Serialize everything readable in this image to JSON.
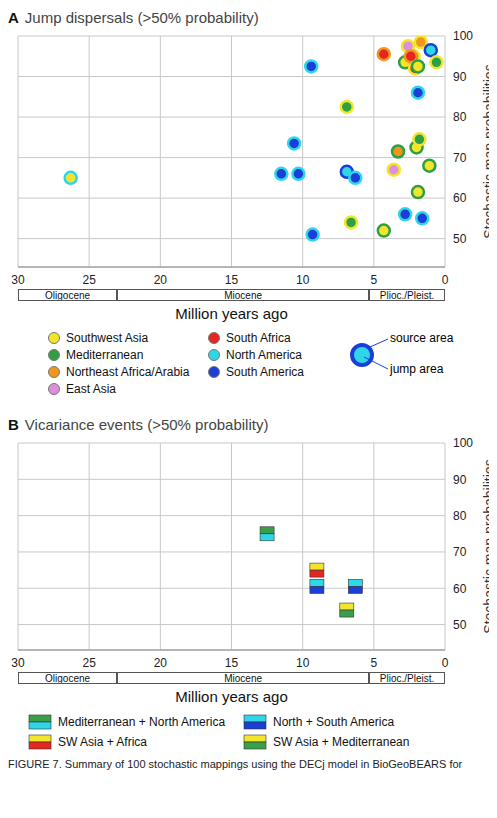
{
  "chart_data": [
    {
      "type": "scatter",
      "title": "A Jump dispersals (>50% probability)",
      "x_label": "Million years ago",
      "y_label": "Stochastic map probabilities",
      "xlim": [
        30,
        0
      ],
      "ylim": [
        43,
        100
      ],
      "xticks": [
        30,
        25,
        20,
        15,
        10,
        5,
        0
      ],
      "yticks": [
        50,
        60,
        70,
        80,
        90,
        100
      ],
      "grid": true,
      "epochs": [
        {
          "name": "Oligocene",
          "start": 30,
          "end": 23.03
        },
        {
          "name": "Miocene",
          "start": 23.03,
          "end": 5.33
        },
        {
          "name": "Plioc./Pleist.",
          "start": 5.33,
          "end": 0
        }
      ],
      "regions": [
        {
          "name": "Southwest Asia",
          "color": "#f2e52b"
        },
        {
          "name": "Mediterranean",
          "color": "#2ea043"
        },
        {
          "name": "Northeast Africa/Arabia",
          "color": "#f0961e"
        },
        {
          "name": "East Asia",
          "color": "#dc90dc"
        },
        {
          "name": "South Africa",
          "color": "#e5251f"
        },
        {
          "name": "North America",
          "color": "#2fd6e8"
        },
        {
          "name": "South America",
          "color": "#1a3fd6"
        }
      ],
      "legend_example": {
        "source": "South America",
        "jump": "North America",
        "source_label": "source area",
        "jump_label": "jump area"
      },
      "points": [
        {
          "x": 26.3,
          "y": 65,
          "source": "North America",
          "jump": "Southwest Asia"
        },
        {
          "x": 9.4,
          "y": 92.5,
          "source": "North America",
          "jump": "South America"
        },
        {
          "x": 6.9,
          "y": 82.5,
          "source": "Southwest Asia",
          "jump": "Mediterranean"
        },
        {
          "x": 10.6,
          "y": 73.5,
          "source": "North America",
          "jump": "South America"
        },
        {
          "x": 11.5,
          "y": 66,
          "source": "North America",
          "jump": "South America"
        },
        {
          "x": 10.3,
          "y": 66,
          "source": "North America",
          "jump": "South America"
        },
        {
          "x": 6.9,
          "y": 66.5,
          "source": "South America",
          "jump": "North America"
        },
        {
          "x": 6.3,
          "y": 65,
          "source": "North America",
          "jump": "South America"
        },
        {
          "x": 9.3,
          "y": 51,
          "source": "North America",
          "jump": "South America"
        },
        {
          "x": 6.6,
          "y": 54,
          "source": "Southwest Asia",
          "jump": "Mediterranean"
        },
        {
          "x": 4.3,
          "y": 95.5,
          "source": "Northeast Africa/Arabia",
          "jump": "South Africa"
        },
        {
          "x": 4.3,
          "y": 52,
          "source": "Mediterranean",
          "jump": "Southwest Asia"
        },
        {
          "x": 3.3,
          "y": 71.5,
          "source": "Mediterranean",
          "jump": "Northeast Africa/Arabia"
        },
        {
          "x": 3.6,
          "y": 67,
          "source": "Southwest Asia",
          "jump": "East Asia"
        },
        {
          "x": 2.6,
          "y": 97.5,
          "source": "Southwest Asia",
          "jump": "East Asia"
        },
        {
          "x": 2.8,
          "y": 93.5,
          "source": "Mediterranean",
          "jump": "Southwest Asia"
        },
        {
          "x": 2.2,
          "y": 95,
          "source": "Southwest Asia",
          "jump": "Mediterranean"
        },
        {
          "x": 2.4,
          "y": 95,
          "source": "Northeast Africa/Arabia",
          "jump": "South Africa"
        },
        {
          "x": 2.1,
          "y": 92,
          "source": "Southwest Asia",
          "jump": "South Africa"
        },
        {
          "x": 1.9,
          "y": 92.5,
          "source": "Mediterranean",
          "jump": "Southwest Asia"
        },
        {
          "x": 1.7,
          "y": 98.5,
          "source": "Southwest Asia",
          "jump": "Northeast Africa/Arabia"
        },
        {
          "x": 2.0,
          "y": 72.5,
          "source": "Mediterranean",
          "jump": "Southwest Asia"
        },
        {
          "x": 1.9,
          "y": 61.5,
          "source": "Mediterranean",
          "jump": "Southwest Asia"
        },
        {
          "x": 1.9,
          "y": 86,
          "source": "North America",
          "jump": "South America"
        },
        {
          "x": 1.8,
          "y": 74.5,
          "source": "Southwest Asia",
          "jump": "Mediterranean"
        },
        {
          "x": 2.8,
          "y": 56,
          "source": "North America",
          "jump": "South America"
        },
        {
          "x": 1.6,
          "y": 55,
          "source": "North America",
          "jump": "South America"
        },
        {
          "x": 1.1,
          "y": 68,
          "source": "Mediterranean",
          "jump": "Southwest Asia"
        },
        {
          "x": 1.0,
          "y": 96.5,
          "source": "South America",
          "jump": "North America"
        },
        {
          "x": 0.6,
          "y": 93.5,
          "source": "Southwest Asia",
          "jump": "Mediterranean"
        }
      ]
    },
    {
      "type": "scatter",
      "title": "B Vicariance events (>50% probability)",
      "x_label": "Million years ago",
      "y_label": "Stochastic map probabilities",
      "xlim": [
        30,
        0
      ],
      "ylim": [
        43,
        100
      ],
      "xticks": [
        30,
        25,
        20,
        15,
        10,
        5,
        0
      ],
      "yticks": [
        50,
        60,
        70,
        80,
        90,
        100
      ],
      "grid": true,
      "epochs": [
        {
          "name": "Oligocene",
          "start": 30,
          "end": 23.03
        },
        {
          "name": "Miocene",
          "start": 23.03,
          "end": 5.33
        },
        {
          "name": "Plioc./Pleist.",
          "start": 5.33,
          "end": 0
        }
      ],
      "event_types": [
        {
          "name": "Mediterranean + North America",
          "colors": [
            "#3a9f48",
            "#2fd6e8"
          ]
        },
        {
          "name": "SW Asia + Africa",
          "colors": [
            "#f2e52b",
            "#e5251f"
          ]
        },
        {
          "name": "North + South America",
          "colors": [
            "#2fd6e8",
            "#1a3fd6"
          ]
        },
        {
          "name": "SW Asia + Mediterranean",
          "colors": [
            "#f2e52b",
            "#3a9f48"
          ]
        }
      ],
      "events": [
        {
          "x": 12.5,
          "y": 75,
          "event": "Mediterranean + North America"
        },
        {
          "x": 9.0,
          "y": 65,
          "event": "SW Asia + Africa"
        },
        {
          "x": 9.0,
          "y": 60.5,
          "event": "North + South America"
        },
        {
          "x": 6.3,
          "y": 60.5,
          "event": "North + South America"
        },
        {
          "x": 6.9,
          "y": 54,
          "event": "SW Asia + Mediterranean"
        }
      ],
      "caption": "FIGURE 7. Summary of 100 stochastic mappings using the DECj model in BioGeoBEARS for"
    }
  ]
}
